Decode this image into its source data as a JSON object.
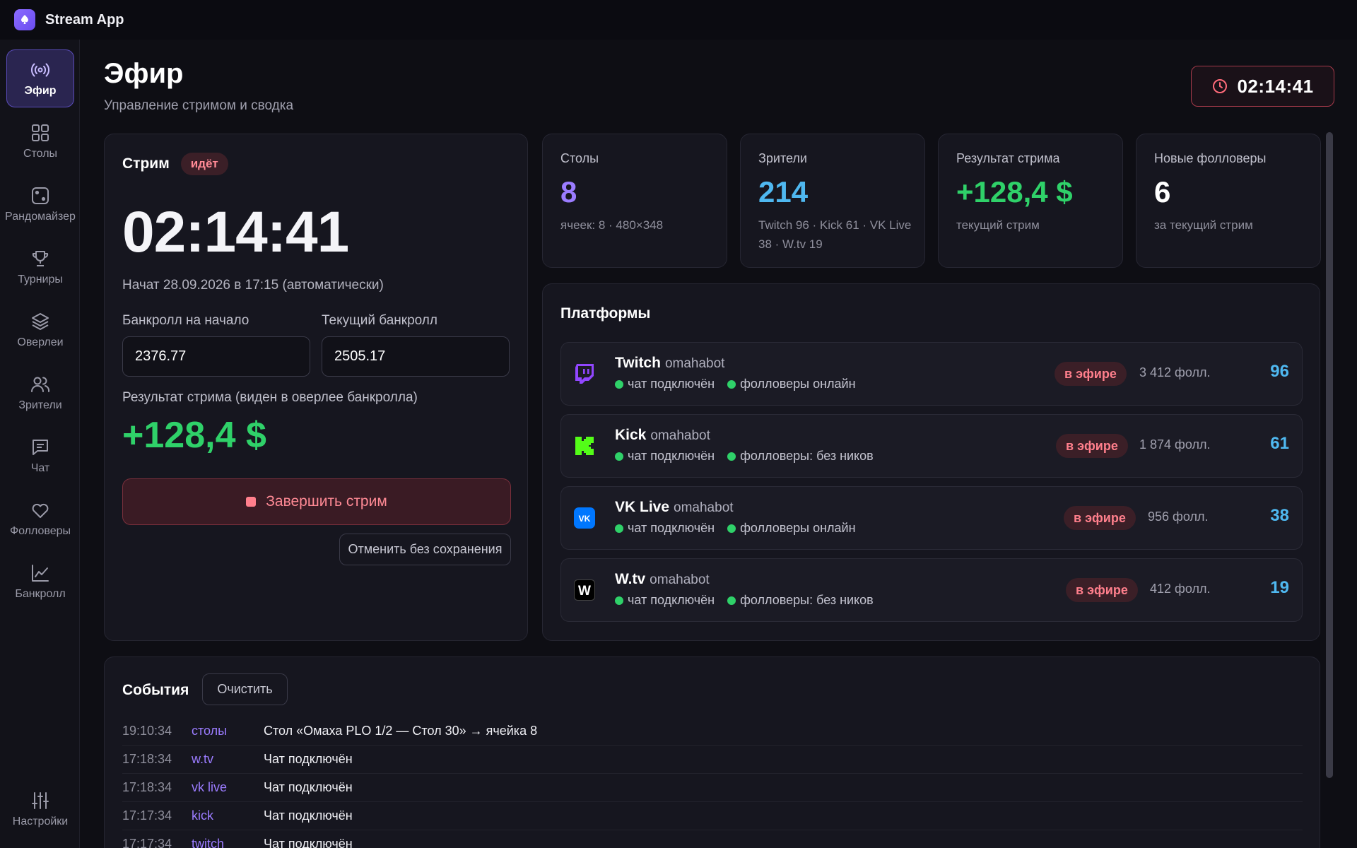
{
  "app": {
    "name": "Stream App"
  },
  "sidebar": {
    "items": [
      {
        "label": "Эфир",
        "icon": "broadcast-icon",
        "active": true
      },
      {
        "label": "Столы",
        "icon": "grid-icon"
      },
      {
        "label": "Рандомайзер",
        "icon": "dice-icon"
      },
      {
        "label": "Турниры",
        "icon": "trophy-icon"
      },
      {
        "label": "Оверлеи",
        "icon": "layers-icon"
      },
      {
        "label": "Зрители",
        "icon": "users-icon"
      },
      {
        "label": "Чат",
        "icon": "chat-icon"
      },
      {
        "label": "Фолловеры",
        "icon": "heart-icon"
      },
      {
        "label": "Банкролл",
        "icon": "chart-icon"
      }
    ],
    "settings": {
      "label": "Настройки",
      "icon": "sliders-icon"
    }
  },
  "header": {
    "title": "Эфир",
    "subtitle": "Управление стримом и сводка",
    "timer": "02:14:41"
  },
  "stream": {
    "title": "Стрим",
    "status": "идёт",
    "timer": "02:14:41",
    "started": "Начат 28.09.2026 в 17:15 (автоматически)",
    "bankroll_start_label": "Банкролл на начало",
    "bankroll_start_value": "2376.77",
    "bankroll_current_label": "Текущий банкролл",
    "bankroll_current_value": "2505.17",
    "result_label": "Результат стрима (виден в оверлее банкролла)",
    "result_value": "+128,4 $",
    "end_button": "Завершить стрим",
    "cancel_button": "Отменить без сохранения"
  },
  "stats": [
    {
      "label": "Столы",
      "value": "8",
      "sub": "ячеек: 8 · 480×348",
      "color": "#9b7cff"
    },
    {
      "label": "Зрители",
      "value": "214",
      "sub": "Twitch 96 · Kick 61 · VK Live 38 · W.tv 19",
      "color": "#4fb8f0"
    },
    {
      "label": "Результат стрима",
      "value": "+128,4 $",
      "sub": "текущий стрим",
      "color": "#2fd169"
    },
    {
      "label": "Новые фолловеры",
      "value": "6",
      "sub": "за текущий стрим",
      "color": "#ffffff"
    }
  ],
  "platforms": {
    "title": "Платформы",
    "rows": [
      {
        "name": "Twitch",
        "handle": "omahabot",
        "chat": "чат подключён",
        "followers_status": "фолловеры онлайн",
        "live": "в эфире",
        "followers": "3 412 фолл.",
        "viewers": "96",
        "icon": "twitch-icon"
      },
      {
        "name": "Kick",
        "handle": "omahabot",
        "chat": "чат подключён",
        "followers_status": "фолловеры: без ников",
        "live": "в эфире",
        "followers": "1 874 фолл.",
        "viewers": "61",
        "icon": "kick-icon"
      },
      {
        "name": "VK Live",
        "handle": "omahabot",
        "chat": "чат подключён",
        "followers_status": "фолловеры онлайн",
        "live": "в эфире",
        "followers": "956 фолл.",
        "viewers": "38",
        "icon": "vk-icon"
      },
      {
        "name": "W.tv",
        "handle": "omahabot",
        "chat": "чат подключён",
        "followers_status": "фолловеры: без ников",
        "live": "в эфире",
        "followers": "412 фолл.",
        "viewers": "19",
        "icon": "wtv-icon"
      }
    ]
  },
  "events": {
    "title": "События",
    "clear_button": "Очистить",
    "rows": [
      {
        "time": "19:10:34",
        "source": "столы",
        "message": "Стол «Омаха PLO 1/2 — Стол 30» → ячейка 8"
      },
      {
        "time": "17:18:34",
        "source": "w.tv",
        "message": "Чат подключён"
      },
      {
        "time": "17:18:34",
        "source": "vk live",
        "message": "Чат подключён"
      },
      {
        "time": "17:17:34",
        "source": "kick",
        "message": "Чат подключён"
      },
      {
        "time": "17:17:34",
        "source": "twitch",
        "message": "Чат подключён"
      }
    ]
  }
}
